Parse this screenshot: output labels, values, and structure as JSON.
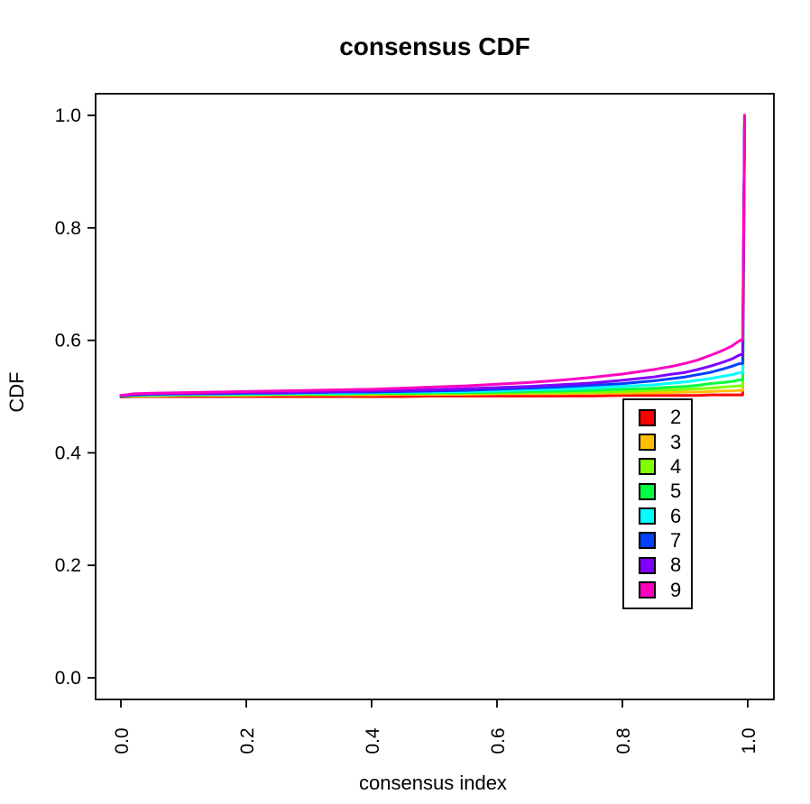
{
  "chart_data": {
    "type": "line",
    "title": "consensus CDF",
    "xlabel": "consensus index",
    "ylabel": "CDF",
    "xlim": [
      0,
      1
    ],
    "ylim": [
      0,
      1
    ],
    "grid": false,
    "x_ticks": [
      "0.0",
      "0.2",
      "0.4",
      "0.6",
      "0.8",
      "1.0"
    ],
    "y_ticks": [
      "0.0",
      "0.2",
      "0.4",
      "0.6",
      "0.8",
      "1.0"
    ],
    "legend_position": "right-center",
    "x": [
      0,
      0.02,
      0.05,
      0.1,
      0.15,
      0.2,
      0.25,
      0.3,
      0.35,
      0.4,
      0.45,
      0.5,
      0.55,
      0.6,
      0.65,
      0.7,
      0.75,
      0.8,
      0.85,
      0.88,
      0.9,
      0.92,
      0.94,
      0.96,
      0.975,
      0.985,
      0.99,
      0.992,
      0.995
    ],
    "series": [
      {
        "name": "2",
        "color": "#FF0000",
        "values": [
          0.499,
          0.5,
          0.5,
          0.5,
          0.5,
          0.5,
          0.5,
          0.5,
          0.5,
          0.5,
          0.5,
          0.501,
          0.501,
          0.501,
          0.501,
          0.501,
          0.501,
          0.502,
          0.502,
          0.502,
          0.502,
          0.502,
          0.503,
          0.503,
          0.503,
          0.503,
          0.503,
          0.503,
          1.0
        ]
      },
      {
        "name": "3",
        "color": "#FFBF00",
        "values": [
          0.5,
          0.501,
          0.501,
          0.502,
          0.502,
          0.502,
          0.503,
          0.503,
          0.503,
          0.503,
          0.504,
          0.504,
          0.504,
          0.505,
          0.505,
          0.505,
          0.506,
          0.506,
          0.507,
          0.507,
          0.508,
          0.508,
          0.509,
          0.51,
          0.51,
          0.511,
          0.511,
          0.511,
          1.0
        ]
      },
      {
        "name": "4",
        "color": "#80FF00",
        "values": [
          0.5,
          0.502,
          0.502,
          0.503,
          0.503,
          0.503,
          0.504,
          0.504,
          0.504,
          0.505,
          0.505,
          0.505,
          0.506,
          0.506,
          0.507,
          0.507,
          0.508,
          0.509,
          0.511,
          0.512,
          0.513,
          0.514,
          0.515,
          0.517,
          0.518,
          0.519,
          0.519,
          0.519,
          1.0
        ]
      },
      {
        "name": "5",
        "color": "#00FF40",
        "values": [
          0.5,
          0.502,
          0.503,
          0.503,
          0.504,
          0.504,
          0.505,
          0.505,
          0.505,
          0.506,
          0.506,
          0.507,
          0.507,
          0.508,
          0.509,
          0.51,
          0.511,
          0.513,
          0.515,
          0.517,
          0.518,
          0.52,
          0.523,
          0.525,
          0.527,
          0.529,
          0.53,
          0.53,
          1.0
        ]
      },
      {
        "name": "6",
        "color": "#00FFFF",
        "values": [
          0.501,
          0.503,
          0.503,
          0.504,
          0.504,
          0.505,
          0.505,
          0.506,
          0.506,
          0.507,
          0.508,
          0.508,
          0.509,
          0.51,
          0.512,
          0.513,
          0.515,
          0.518,
          0.521,
          0.524,
          0.526,
          0.529,
          0.532,
          0.536,
          0.539,
          0.542,
          0.543,
          0.543,
          1.0
        ]
      },
      {
        "name": "7",
        "color": "#0040FF",
        "values": [
          0.501,
          0.503,
          0.504,
          0.505,
          0.505,
          0.506,
          0.506,
          0.507,
          0.508,
          0.508,
          0.509,
          0.51,
          0.511,
          0.513,
          0.515,
          0.517,
          0.52,
          0.523,
          0.528,
          0.532,
          0.535,
          0.539,
          0.543,
          0.549,
          0.554,
          0.558,
          0.559,
          0.559,
          1.0
        ]
      },
      {
        "name": "8",
        "color": "#8000FF",
        "values": [
          0.502,
          0.504,
          0.505,
          0.505,
          0.506,
          0.507,
          0.507,
          0.508,
          0.509,
          0.51,
          0.511,
          0.512,
          0.514,
          0.516,
          0.518,
          0.521,
          0.524,
          0.529,
          0.535,
          0.54,
          0.543,
          0.548,
          0.554,
          0.561,
          0.567,
          0.573,
          0.575,
          0.575,
          1.0
        ]
      },
      {
        "name": "9",
        "color": "#FF00BF",
        "values": [
          0.502,
          0.505,
          0.506,
          0.507,
          0.508,
          0.509,
          0.51,
          0.511,
          0.512,
          0.513,
          0.515,
          0.517,
          0.519,
          0.522,
          0.525,
          0.529,
          0.534,
          0.54,
          0.548,
          0.554,
          0.559,
          0.565,
          0.573,
          0.582,
          0.59,
          0.598,
          0.601,
          0.601,
          1.0
        ]
      }
    ],
    "axis_color": "#000000",
    "background_color": "#ffffff"
  }
}
